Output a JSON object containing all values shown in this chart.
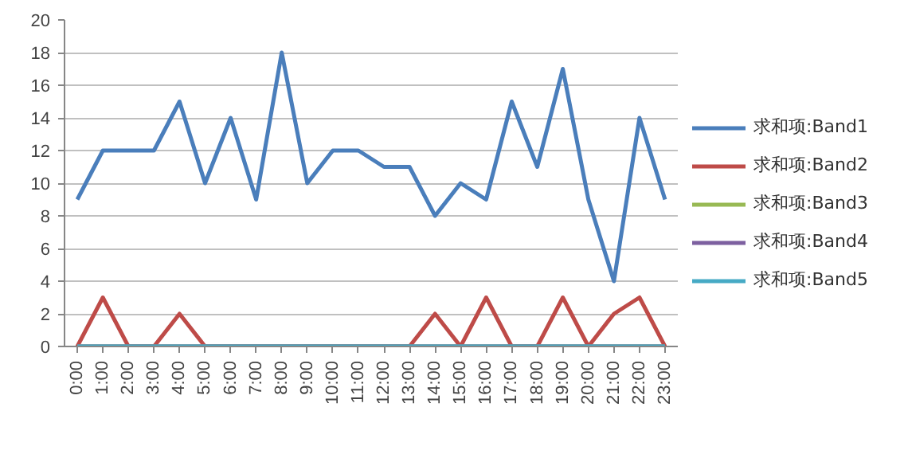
{
  "chart_data": {
    "type": "line",
    "categories": [
      "0:00",
      "1:00",
      "2:00",
      "3:00",
      "4:00",
      "5:00",
      "6:00",
      "7:00",
      "8:00",
      "9:00",
      "10:00",
      "11:00",
      "12:00",
      "13:00",
      "14:00",
      "15:00",
      "16:00",
      "17:00",
      "18:00",
      "19:00",
      "20:00",
      "21:00",
      "22:00",
      "23:00"
    ],
    "series": [
      {
        "name": "求和项:Band1",
        "color": "#4a7ebb",
        "values": [
          9,
          12,
          12,
          12,
          15,
          10,
          14,
          9,
          18,
          10,
          12,
          12,
          11,
          11,
          8,
          10,
          9,
          15,
          11,
          17,
          9,
          4,
          14,
          9
        ]
      },
      {
        "name": "求和项:Band2",
        "color": "#be4b48",
        "values": [
          0,
          3,
          0,
          0,
          2,
          0,
          0,
          0,
          0,
          0,
          0,
          0,
          0,
          0,
          2,
          0,
          3,
          0,
          0,
          3,
          0,
          2,
          3,
          0
        ]
      },
      {
        "name": "求和项:Band3",
        "color": "#98b954",
        "values": [
          null,
          null,
          null,
          null,
          null,
          null,
          null,
          null,
          null,
          null,
          null,
          null,
          null,
          null,
          null,
          null,
          null,
          null,
          null,
          null,
          null,
          null,
          null,
          null
        ]
      },
      {
        "name": "求和项:Band4",
        "color": "#7d60a0",
        "values": [
          null,
          null,
          null,
          null,
          null,
          null,
          null,
          null,
          null,
          null,
          null,
          null,
          null,
          null,
          null,
          null,
          null,
          null,
          null,
          null,
          null,
          null,
          null,
          null
        ]
      },
      {
        "name": "求和项:Band5",
        "color": "#46aac5",
        "values": [
          0,
          0,
          0,
          0,
          0,
          0,
          0,
          0,
          0,
          0,
          0,
          0,
          0,
          0,
          0,
          0,
          0,
          0,
          0,
          0,
          0,
          0,
          0,
          0
        ]
      }
    ],
    "ylim": [
      0,
      20
    ],
    "yticks": [
      0,
      2,
      4,
      6,
      8,
      10,
      12,
      14,
      16,
      18,
      20
    ],
    "grid": "y",
    "legend": "right",
    "marker": "none",
    "line_style": "solid"
  }
}
